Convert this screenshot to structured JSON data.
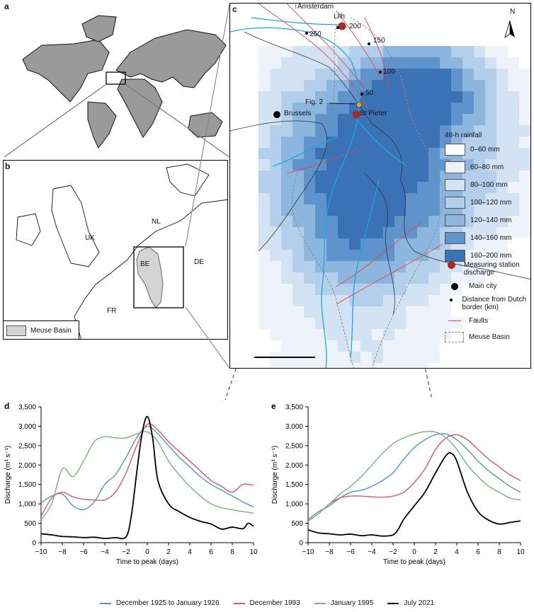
{
  "panel_a": {
    "label": "a"
  },
  "panel_b": {
    "label": "b",
    "countries": [
      "UK",
      "NL",
      "BE",
      "DE",
      "FR"
    ],
    "legend": "Meuse Basin"
  },
  "panel_c": {
    "label": "c",
    "north": "N",
    "places": {
      "amsterdam": "Amsterdam",
      "lith": "Lith",
      "brussels": "Brussels",
      "st_pieter": "St Pieter",
      "fig2": "Fig. 2"
    },
    "distance_marks": [
      "250",
      "200",
      "150",
      "100",
      "50"
    ],
    "rainfall_title": "48-h rainfall",
    "rainfall_bins": [
      {
        "label": "0–60 mm",
        "color": "#ffffff"
      },
      {
        "label": "60–80 mm",
        "color": "#eef3fb"
      },
      {
        "label": "80–100 mm",
        "color": "#d4e3f3"
      },
      {
        "label": "100–120 mm",
        "color": "#b3cfec"
      },
      {
        "label": "120–140 mm",
        "color": "#8cb6de"
      },
      {
        "label": "140–160 mm",
        "color": "#5e93cc"
      },
      {
        "label": "160–200 mm",
        "color": "#3b72b5"
      }
    ],
    "symbol_legend": {
      "station": "Measuring station discharge",
      "city": "Main city",
      "distance": "Distance from Dutch border (km)",
      "faults": "Faults",
      "basin": "Meuse Basin"
    }
  },
  "chart_data": [
    {
      "panel": "d",
      "type": "line",
      "xlabel": "Time to peak (days)",
      "ylabel": "Discharge (m³ s⁻¹)",
      "xlim": [
        -10,
        10
      ],
      "ylim": [
        0,
        3500
      ],
      "xticks": [
        "−10",
        "−8",
        "−6",
        "−4",
        "−2",
        "0",
        "2",
        "4",
        "6",
        "8",
        "10"
      ],
      "yticks": [
        "0",
        "500",
        "1,000",
        "1,500",
        "2,000",
        "2,500",
        "3,000",
        "3,500"
      ],
      "series": [
        {
          "name": "December 1925 to January 1926",
          "color": "#5b8fc4",
          "points": [
            [
              -10,
              1020
            ],
            [
              -9,
              1200
            ],
            [
              -8,
              1250
            ],
            [
              -7,
              950
            ],
            [
              -6,
              850
            ],
            [
              -5,
              1050
            ],
            [
              -4,
              1500
            ],
            [
              -3,
              1750
            ],
            [
              -2,
              2200
            ],
            [
              -1,
              2700
            ],
            [
              0,
              3000
            ],
            [
              1,
              2800
            ],
            [
              2,
              2500
            ],
            [
              3,
              2200
            ],
            [
              4,
              1950
            ],
            [
              5,
              1700
            ],
            [
              6,
              1500
            ],
            [
              7,
              1350
            ],
            [
              8,
              1200
            ],
            [
              9,
              1050
            ],
            [
              10,
              920
            ]
          ]
        },
        {
          "name": "December 1993",
          "color": "#d05b6d",
          "points": [
            [
              -10,
              680
            ],
            [
              -9,
              1150
            ],
            [
              -8,
              1300
            ],
            [
              -7,
              1180
            ],
            [
              -6,
              1120
            ],
            [
              -5,
              1100
            ],
            [
              -4,
              1100
            ],
            [
              -3,
              1300
            ],
            [
              -2,
              1800
            ],
            [
              -1,
              2500
            ],
            [
              0,
              3050
            ],
            [
              1,
              2900
            ],
            [
              2,
              2600
            ],
            [
              3,
              2350
            ],
            [
              4,
              2100
            ],
            [
              5,
              1850
            ],
            [
              6,
              1600
            ],
            [
              7,
              1450
            ],
            [
              8,
              1300
            ],
            [
              9,
              1500
            ],
            [
              10,
              1480
            ]
          ]
        },
        {
          "name": "January 1995",
          "color": "#7fb07f",
          "points": [
            [
              -10,
              600
            ],
            [
              -9,
              1000
            ],
            [
              -8,
              1900
            ],
            [
              -7,
              1700
            ],
            [
              -6,
              2100
            ],
            [
              -5,
              2600
            ],
            [
              -4,
              2730
            ],
            [
              -3,
              2700
            ],
            [
              -2,
              2700
            ],
            [
              -1,
              2800
            ],
            [
              0,
              2850
            ],
            [
              1,
              2600
            ],
            [
              2,
              2100
            ],
            [
              3,
              1750
            ],
            [
              4,
              1450
            ],
            [
              5,
              1200
            ],
            [
              6,
              1000
            ],
            [
              7,
              900
            ],
            [
              8,
              850
            ],
            [
              9,
              800
            ],
            [
              10,
              760
            ]
          ]
        },
        {
          "name": "July 2021",
          "color": "#000000",
          "points": [
            [
              -10,
              230
            ],
            [
              -9,
              200
            ],
            [
              -8,
              160
            ],
            [
              -7,
              150
            ],
            [
              -6,
              130
            ],
            [
              -5,
              140
            ],
            [
              -4,
              110
            ],
            [
              -3,
              130
            ],
            [
              -2,
              150
            ],
            [
              -1.5,
              700
            ],
            [
              -1,
              1800
            ],
            [
              -0.5,
              2800
            ],
            [
              0,
              3250
            ],
            [
              0.5,
              2700
            ],
            [
              1,
              1600
            ],
            [
              2,
              1000
            ],
            [
              3,
              800
            ],
            [
              4,
              650
            ],
            [
              5,
              550
            ],
            [
              6,
              480
            ],
            [
              7,
              350
            ],
            [
              8,
              400
            ],
            [
              9,
              360
            ],
            [
              9.5,
              500
            ],
            [
              10,
              420
            ]
          ]
        }
      ]
    },
    {
      "panel": "e",
      "type": "line",
      "xlabel": "Time to peak (days)",
      "ylabel": "Discharge (m³ s⁻¹)",
      "xlim": [
        -10,
        10
      ],
      "ylim": [
        0,
        3500
      ],
      "xticks": [
        "−10",
        "−8",
        "−6",
        "−4",
        "−2",
        "0",
        "2",
        "4",
        "6",
        "8",
        "10"
      ],
      "yticks": [
        "0",
        "500",
        "1,000",
        "1,500",
        "2,000",
        "2,500",
        "3,000",
        "3,500"
      ],
      "series": [
        {
          "name": "December 1925 to January 1926",
          "color": "#5b8fc4",
          "points": [
            [
              -10,
              600
            ],
            [
              -9,
              800
            ],
            [
              -8,
              950
            ],
            [
              -7,
              1150
            ],
            [
              -6,
              1300
            ],
            [
              -5,
              1350
            ],
            [
              -4,
              1450
            ],
            [
              -3,
              1600
            ],
            [
              -2,
              1800
            ],
            [
              -1,
              2150
            ],
            [
              0,
              2450
            ],
            [
              1,
              2650
            ],
            [
              2,
              2780
            ],
            [
              3,
              2800
            ],
            [
              4,
              2650
            ],
            [
              5,
              2400
            ],
            [
              6,
              2100
            ],
            [
              7,
              1850
            ],
            [
              8,
              1650
            ],
            [
              9,
              1450
            ],
            [
              10,
              1300
            ]
          ]
        },
        {
          "name": "December 1993",
          "color": "#d05b6d",
          "points": [
            [
              -10,
              560
            ],
            [
              -9,
              750
            ],
            [
              -8,
              1000
            ],
            [
              -7,
              1150
            ],
            [
              -6,
              1200
            ],
            [
              -5,
              1200
            ],
            [
              -4,
              1180
            ],
            [
              -3,
              1170
            ],
            [
              -2,
              1200
            ],
            [
              -1,
              1300
            ],
            [
              0,
              1550
            ],
            [
              1,
              1900
            ],
            [
              2,
              2400
            ],
            [
              3,
              2700
            ],
            [
              4,
              2780
            ],
            [
              5,
              2650
            ],
            [
              6,
              2400
            ],
            [
              7,
              2150
            ],
            [
              8,
              1950
            ],
            [
              9,
              1750
            ],
            [
              10,
              1600
            ]
          ]
        },
        {
          "name": "January 1995",
          "color": "#7fb07f",
          "points": [
            [
              -10,
              550
            ],
            [
              -9,
              750
            ],
            [
              -8,
              1000
            ],
            [
              -7,
              1250
            ],
            [
              -6,
              1450
            ],
            [
              -5,
              1700
            ],
            [
              -4,
              2000
            ],
            [
              -3,
              2300
            ],
            [
              -2,
              2550
            ],
            [
              -1,
              2700
            ],
            [
              0,
              2800
            ],
            [
              1,
              2860
            ],
            [
              2,
              2850
            ],
            [
              3,
              2700
            ],
            [
              4,
              2400
            ],
            [
              5,
              2000
            ],
            [
              6,
              1700
            ],
            [
              7,
              1450
            ],
            [
              8,
              1300
            ],
            [
              9,
              1150
            ],
            [
              10,
              1100
            ]
          ]
        },
        {
          "name": "July 2021",
          "color": "#000000",
          "points": [
            [
              -10,
              330
            ],
            [
              -9,
              250
            ],
            [
              -8,
              230
            ],
            [
              -7,
              200
            ],
            [
              -6,
              220
            ],
            [
              -5,
              180
            ],
            [
              -4,
              200
            ],
            [
              -3,
              170
            ],
            [
              -2,
              200
            ],
            [
              -1.5,
              350
            ],
            [
              -1,
              600
            ],
            [
              0,
              950
            ],
            [
              1,
              1300
            ],
            [
              2,
              1800
            ],
            [
              3,
              2250
            ],
            [
              3.5,
              2300
            ],
            [
              4,
              2100
            ],
            [
              5,
              1300
            ],
            [
              6,
              800
            ],
            [
              7,
              580
            ],
            [
              8,
              480
            ],
            [
              9,
              520
            ],
            [
              10,
              560
            ]
          ]
        }
      ]
    }
  ],
  "legend": [
    {
      "name": "December 1925 to January 1926",
      "color": "#5b8fc4"
    },
    {
      "name": "December 1993",
      "color": "#d05b6d"
    },
    {
      "name": "January 1995",
      "color": "#7fb07f"
    },
    {
      "name": "July 2021",
      "color": "#000000"
    }
  ]
}
